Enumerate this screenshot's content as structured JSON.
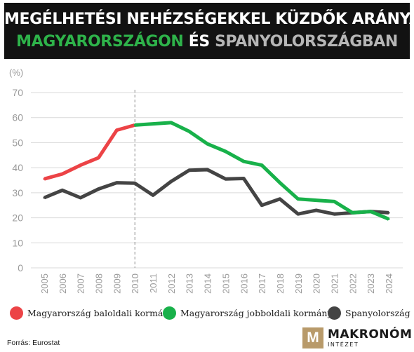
{
  "header": {
    "title_line1": "MEGÉLHETÉSI NEHÉZSÉGEKKEL KÜZDŐK ARÁNYA",
    "title_hu": "MAGYARORSZÁGON",
    "title_conj": "ÉS",
    "title_es": "SPANYOLORSZÁGBAN"
  },
  "colors": {
    "hu_left": "#ec4346",
    "hu_right": "#18b14a",
    "spain": "#444444",
    "grid": "#d9d9d9",
    "axis_text": "#9a9a9a"
  },
  "chart_data": {
    "type": "line",
    "unit_label": "(%)",
    "x": [
      "2005",
      "2006",
      "2007",
      "2008",
      "2009",
      "2010",
      "2011",
      "2012",
      "2013",
      "2014",
      "2015",
      "2016",
      "2017",
      "2018",
      "2019",
      "2020",
      "2021",
      "2022",
      "2023",
      "2024"
    ],
    "ylim": [
      0,
      70
    ],
    "yticks": [
      0,
      10,
      20,
      30,
      40,
      50,
      60,
      70
    ],
    "grid": true,
    "divider_at": "2010",
    "series": [
      {
        "name": "Magyarország baloldali kormány",
        "color_key": "hu_left",
        "x": [
          "2005",
          "2006",
          "2007",
          "2008",
          "2009",
          "2010"
        ],
        "values": [
          35.5,
          37.5,
          41,
          44,
          55,
          57
        ]
      },
      {
        "name": "Magyarország jobboldali kormány",
        "color_key": "hu_right",
        "x": [
          "2010",
          "2011",
          "2012",
          "2013",
          "2014",
          "2015",
          "2016",
          "2017",
          "2018",
          "2019",
          "2020",
          "2021",
          "2022",
          "2023",
          "2024"
        ],
        "values": [
          57,
          57.5,
          58,
          54.5,
          49.5,
          46.5,
          42.5,
          41,
          34,
          27.5,
          27,
          26.5,
          22,
          22.5,
          19.5
        ]
      },
      {
        "name": "Spanyolország",
        "color_key": "spain",
        "x": [
          "2005",
          "2006",
          "2007",
          "2008",
          "2009",
          "2010",
          "2011",
          "2012",
          "2013",
          "2014",
          "2015",
          "2016",
          "2017",
          "2018",
          "2019",
          "2020",
          "2021",
          "2022",
          "2023",
          "2024"
        ],
        "values": [
          28,
          31,
          28,
          31.5,
          34,
          33.8,
          29,
          34.5,
          39,
          39.2,
          35.5,
          35.7,
          25,
          27.5,
          21.5,
          23,
          21.5,
          22,
          22.5,
          22
        ]
      }
    ]
  },
  "source": "Forrás: Eurostat",
  "logo": {
    "mark": "M",
    "name": "MAKRONÓM",
    "sub": "INTÉZET"
  }
}
